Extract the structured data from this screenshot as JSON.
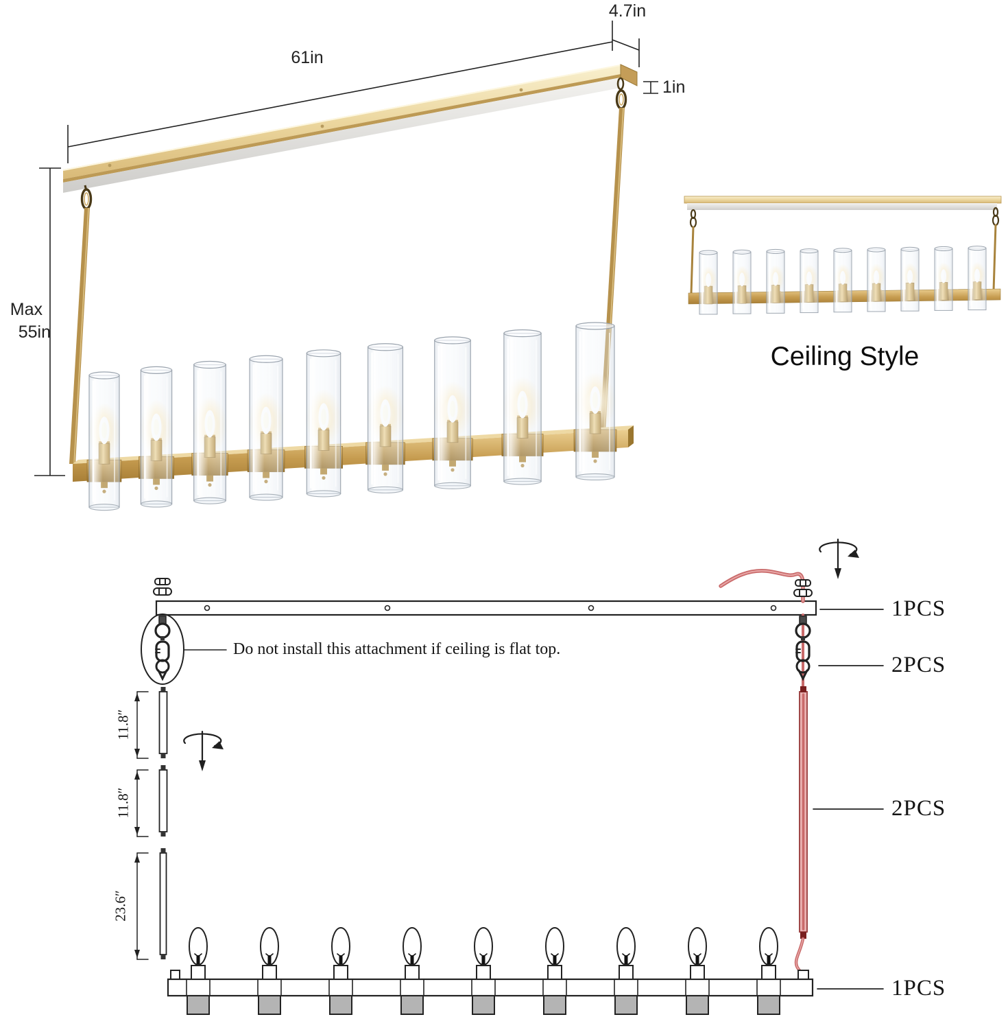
{
  "product_view": {
    "dim_length": "61in",
    "dim_depth": "4.7in",
    "dim_canopy_thickness": "1in",
    "dim_max_drop_line1": "Max",
    "dim_max_drop_line2": "55in",
    "lights_count": 9
  },
  "ceiling_style_view": {
    "caption": "Ceiling Style",
    "lights_count": 9
  },
  "installation_diagram": {
    "note": "Do not install this attachment if ceiling is flat top.",
    "rod_lengths": [
      "11.8″",
      "11.8″",
      "23.6″"
    ],
    "parts": [
      {
        "name": "ceiling-plate",
        "qty": "1PCS"
      },
      {
        "name": "hanging-hardware",
        "qty": "2PCS"
      },
      {
        "name": "rod-with-wire",
        "qty": "2PCS"
      },
      {
        "name": "fixture-body",
        "qty": "1PCS"
      }
    ],
    "bulbs_count": 9
  },
  "colors": {
    "gold": "#c8a258",
    "gold_light": "#f2e4bc",
    "gold_dark": "#a07c38",
    "line": "#1f1f1f",
    "wire_red": "#c96a6a",
    "wire_red_light": "#e8a8a8",
    "gray_box": "#b4b4b4",
    "background": "#ffffff"
  }
}
